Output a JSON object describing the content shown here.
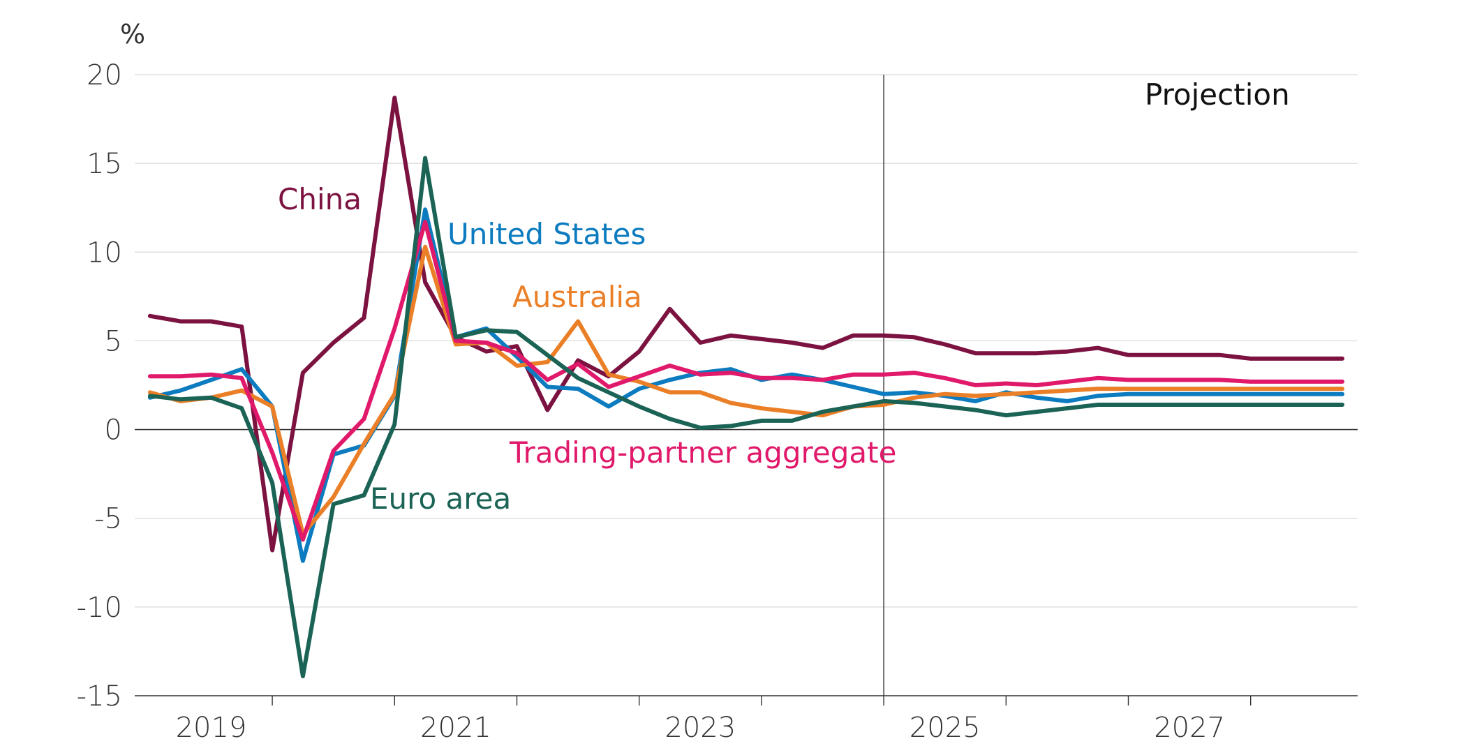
{
  "chart_data": {
    "type": "line",
    "title": "",
    "ylabel": "%",
    "xlabel": "",
    "ylim": [
      -15,
      20
    ],
    "yticks": [
      -15,
      -10,
      -5,
      0,
      5,
      10,
      15,
      20
    ],
    "ytick_labels": [
      "-15",
      "-10",
      "-5",
      "0",
      "5",
      "10",
      "15",
      "20"
    ],
    "xlim": [
      2018.875,
      2028.875
    ],
    "xtick_labels": [
      {
        "year": 2019,
        "label": "2019"
      },
      {
        "year": 2021,
        "label": "2021"
      },
      {
        "year": 2023,
        "label": "2023"
      },
      {
        "year": 2025,
        "label": "2025"
      },
      {
        "year": 2027,
        "label": "2027"
      }
    ],
    "year_separators": [
      2020,
      2021,
      2022,
      2023,
      2024,
      2025,
      2026,
      2027,
      2028
    ],
    "grid": true,
    "legend": "none",
    "projection_start": 2025,
    "projection_label": "Projection",
    "x_start": 2019.0,
    "x_step": 0.25,
    "series": [
      {
        "name": "China",
        "color": "#7c1240",
        "values": [
          6.4,
          6.1,
          6.1,
          5.8,
          -6.8,
          3.2,
          4.9,
          6.3,
          18.7,
          8.3,
          5.2,
          4.4,
          4.7,
          1.1,
          3.9,
          3.0,
          4.4,
          6.8,
          4.9,
          5.3,
          5.1,
          4.9,
          4.6,
          5.3,
          5.3,
          5.2,
          4.8,
          4.3,
          4.3,
          4.3,
          4.4,
          4.6,
          4.2,
          4.2,
          4.2,
          4.2,
          4.0,
          4.0,
          4.0,
          4.0
        ]
      },
      {
        "name": "United States",
        "color": "#0c7bbf",
        "values": [
          1.8,
          2.2,
          2.8,
          3.4,
          1.3,
          -7.4,
          -1.4,
          -0.9,
          1.9,
          12.4,
          5.2,
          5.7,
          4.1,
          2.4,
          2.3,
          1.3,
          2.3,
          2.8,
          3.2,
          3.4,
          2.8,
          3.1,
          2.8,
          2.4,
          2.0,
          2.1,
          1.9,
          1.6,
          2.1,
          1.8,
          1.6,
          1.9,
          2.0,
          2.0,
          2.0,
          2.0,
          2.0,
          2.0,
          2.0,
          2.0
        ]
      },
      {
        "name": "Australia",
        "color": "#ea7f27",
        "values": [
          2.1,
          1.6,
          1.8,
          2.2,
          1.3,
          -5.9,
          -3.8,
          -0.8,
          2.0,
          10.3,
          4.8,
          4.9,
          3.6,
          3.8,
          6.1,
          3.1,
          2.7,
          2.1,
          2.1,
          1.5,
          1.2,
          1.0,
          0.8,
          1.3,
          1.4,
          1.8,
          2.0,
          1.9,
          2.0,
          2.1,
          2.2,
          2.3,
          2.3,
          2.3,
          2.3,
          2.3,
          2.3,
          2.3,
          2.3,
          2.3
        ]
      },
      {
        "name": "Trading-partner aggregate",
        "color": "#e0196a",
        "values": [
          3.0,
          3.0,
          3.1,
          2.9,
          -1.3,
          -6.2,
          -1.2,
          0.6,
          5.7,
          11.7,
          5.0,
          4.9,
          4.3,
          2.8,
          3.7,
          2.4,
          3.0,
          3.6,
          3.1,
          3.2,
          2.9,
          2.9,
          2.8,
          3.1,
          3.1,
          3.2,
          2.9,
          2.5,
          2.6,
          2.5,
          2.7,
          2.9,
          2.8,
          2.8,
          2.8,
          2.8,
          2.7,
          2.7,
          2.7,
          2.7
        ]
      },
      {
        "name": "Euro area",
        "color": "#1a6355",
        "values": [
          1.9,
          1.7,
          1.8,
          1.2,
          -3.0,
          -13.9,
          -4.2,
          -3.7,
          0.3,
          15.3,
          5.2,
          5.6,
          5.5,
          4.2,
          2.9,
          2.1,
          1.3,
          0.6,
          0.1,
          0.2,
          0.5,
          0.5,
          1.0,
          1.3,
          1.6,
          1.5,
          1.3,
          1.1,
          0.8,
          1.0,
          1.2,
          1.4,
          1.4,
          1.4,
          1.4,
          1.4,
          1.4,
          1.4,
          1.4,
          1.4
        ]
      }
    ],
    "annotations": [
      {
        "text": "China",
        "color": "#7c1240"
      },
      {
        "text": "United States",
        "color": "#0c7bbf"
      },
      {
        "text": "Australia",
        "color": "#ea7f27"
      },
      {
        "text": "Trading-partner aggregate",
        "color": "#e0196a"
      },
      {
        "text": "Euro area",
        "color": "#1a6355"
      }
    ]
  }
}
